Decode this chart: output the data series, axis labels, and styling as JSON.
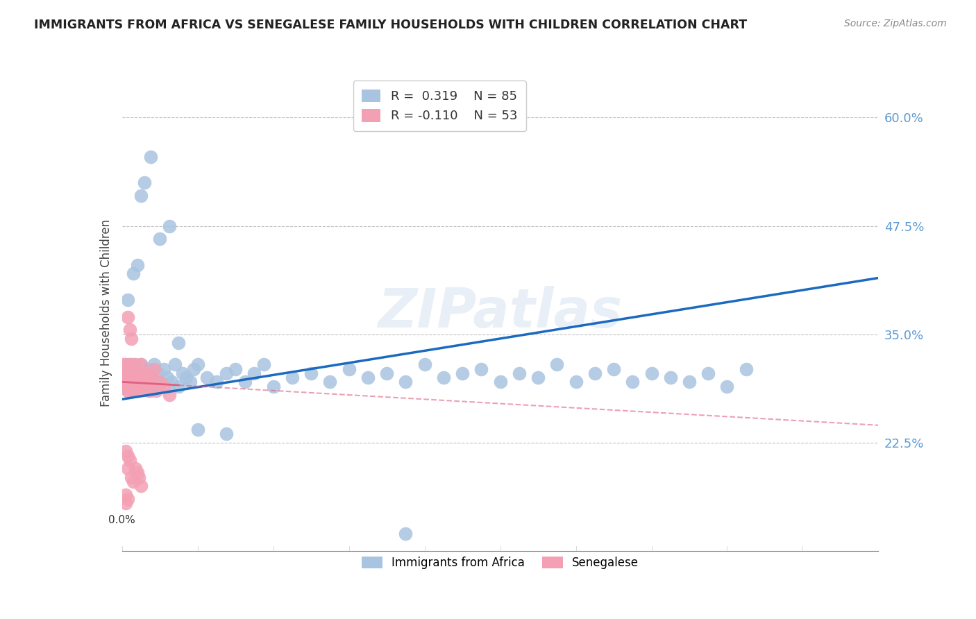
{
  "title": "IMMIGRANTS FROM AFRICA VS SENEGALESE FAMILY HOUSEHOLDS WITH CHILDREN CORRELATION CHART",
  "source": "Source: ZipAtlas.com",
  "ylabel": "Family Households with Children",
  "ytick_labels": [
    "60.0%",
    "47.5%",
    "35.0%",
    "22.5%"
  ],
  "ytick_values": [
    0.6,
    0.475,
    0.35,
    0.225
  ],
  "xmin": 0.0,
  "xmax": 0.4,
  "ymin": 0.1,
  "ymax": 0.65,
  "legend": {
    "africa_r": "0.319",
    "africa_n": "85",
    "senegal_r": "-0.110",
    "senegal_n": "53"
  },
  "africa_color": "#a8c4e0",
  "senegal_color": "#f4a0b4",
  "africa_line_color": "#1a6abf",
  "senegal_line_color": "#e06080",
  "watermark": "ZIPatlas",
  "africa_line_y0": 0.275,
  "africa_line_y1": 0.415,
  "senegal_line_y0": 0.295,
  "senegal_line_y1": 0.245,
  "africa_scatter_x": [
    0.001,
    0.002,
    0.002,
    0.003,
    0.003,
    0.003,
    0.004,
    0.004,
    0.005,
    0.005,
    0.006,
    0.006,
    0.007,
    0.007,
    0.008,
    0.008,
    0.009,
    0.009,
    0.01,
    0.01,
    0.011,
    0.012,
    0.013,
    0.014,
    0.015,
    0.016,
    0.017,
    0.018,
    0.019,
    0.02,
    0.022,
    0.024,
    0.026,
    0.028,
    0.03,
    0.032,
    0.034,
    0.036,
    0.038,
    0.04,
    0.045,
    0.05,
    0.055,
    0.06,
    0.065,
    0.07,
    0.075,
    0.08,
    0.09,
    0.1,
    0.11,
    0.12,
    0.13,
    0.14,
    0.15,
    0.16,
    0.17,
    0.18,
    0.19,
    0.2,
    0.21,
    0.22,
    0.23,
    0.24,
    0.25,
    0.26,
    0.27,
    0.28,
    0.29,
    0.3,
    0.31,
    0.32,
    0.33,
    0.003,
    0.006,
    0.008,
    0.01,
    0.012,
    0.015,
    0.02,
    0.025,
    0.03,
    0.04,
    0.055,
    0.15
  ],
  "africa_scatter_y": [
    0.295,
    0.29,
    0.305,
    0.285,
    0.31,
    0.3,
    0.295,
    0.315,
    0.29,
    0.305,
    0.3,
    0.315,
    0.295,
    0.305,
    0.285,
    0.31,
    0.295,
    0.305,
    0.3,
    0.315,
    0.29,
    0.305,
    0.295,
    0.31,
    0.285,
    0.3,
    0.315,
    0.295,
    0.305,
    0.29,
    0.31,
    0.3,
    0.295,
    0.315,
    0.29,
    0.305,
    0.3,
    0.295,
    0.31,
    0.315,
    0.3,
    0.295,
    0.305,
    0.31,
    0.295,
    0.305,
    0.315,
    0.29,
    0.3,
    0.305,
    0.295,
    0.31,
    0.3,
    0.305,
    0.295,
    0.315,
    0.3,
    0.305,
    0.31,
    0.295,
    0.305,
    0.3,
    0.315,
    0.295,
    0.305,
    0.31,
    0.295,
    0.305,
    0.3,
    0.295,
    0.305,
    0.29,
    0.31,
    0.39,
    0.42,
    0.43,
    0.51,
    0.525,
    0.555,
    0.46,
    0.475,
    0.34,
    0.24,
    0.235,
    0.12
  ],
  "senegal_scatter_x": [
    0.001,
    0.001,
    0.001,
    0.002,
    0.002,
    0.002,
    0.003,
    0.003,
    0.003,
    0.004,
    0.004,
    0.004,
    0.005,
    0.005,
    0.005,
    0.006,
    0.006,
    0.007,
    0.007,
    0.007,
    0.008,
    0.008,
    0.009,
    0.009,
    0.01,
    0.01,
    0.011,
    0.012,
    0.013,
    0.014,
    0.015,
    0.016,
    0.017,
    0.018,
    0.02,
    0.022,
    0.025,
    0.003,
    0.004,
    0.005,
    0.002,
    0.003,
    0.003,
    0.004,
    0.005,
    0.006,
    0.007,
    0.008,
    0.009,
    0.01,
    0.002,
    0.003,
    0.002
  ],
  "senegal_scatter_y": [
    0.295,
    0.305,
    0.315,
    0.29,
    0.305,
    0.315,
    0.285,
    0.295,
    0.31,
    0.29,
    0.305,
    0.315,
    0.295,
    0.31,
    0.3,
    0.285,
    0.3,
    0.295,
    0.31,
    0.315,
    0.285,
    0.3,
    0.29,
    0.305,
    0.295,
    0.315,
    0.3,
    0.29,
    0.305,
    0.285,
    0.295,
    0.3,
    0.31,
    0.285,
    0.295,
    0.29,
    0.28,
    0.37,
    0.355,
    0.345,
    0.215,
    0.21,
    0.195,
    0.205,
    0.185,
    0.18,
    0.195,
    0.19,
    0.185,
    0.175,
    0.165,
    0.16,
    0.155
  ]
}
